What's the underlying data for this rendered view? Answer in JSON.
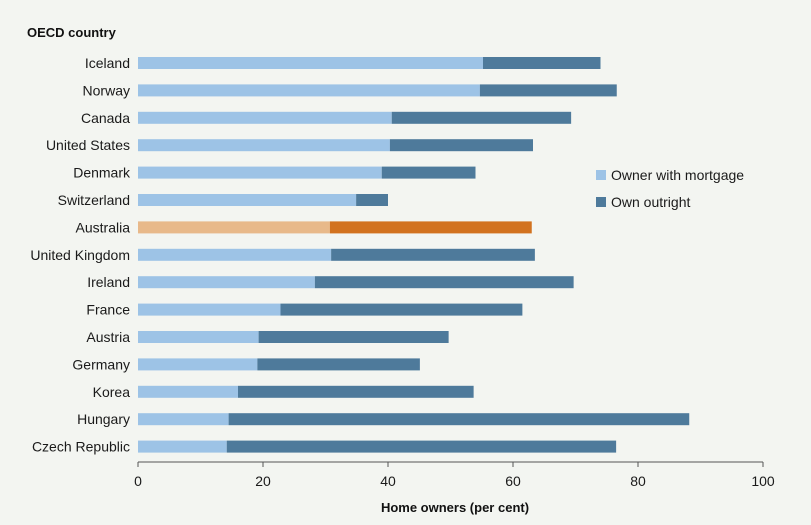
{
  "chart_data": {
    "type": "bar",
    "orientation": "horizontal",
    "stacked": true,
    "y_heading": "OECD country",
    "xlabel": "Home owners (per cent)",
    "xlim": [
      0,
      100
    ],
    "xticks": [
      0,
      20,
      40,
      60,
      80,
      100
    ],
    "grid": false,
    "legend_position": "right",
    "categories": [
      "Iceland",
      "Norway",
      "Canada",
      "United States",
      "Denmark",
      "Switzerland",
      "Australia",
      "United Kingdom",
      "Ireland",
      "France",
      "Austria",
      "Germany",
      "Korea",
      "Hungary",
      "Czech Republic"
    ],
    "highlight_category": "Australia",
    "series": [
      {
        "name": "Owner with mortgage",
        "color": "#9dc3e6",
        "highlight_color": "#e8b98a",
        "values": [
          55.2,
          54.7,
          40.6,
          40.3,
          39.0,
          34.9,
          30.7,
          30.9,
          28.3,
          22.8,
          19.3,
          19.1,
          16.0,
          14.5,
          14.2
        ]
      },
      {
        "name": "Own outright",
        "color": "#4e7a9b",
        "highlight_color": "#d2721f",
        "values": [
          18.8,
          21.9,
          28.7,
          22.9,
          15.0,
          5.1,
          32.3,
          32.6,
          41.4,
          38.7,
          30.4,
          26.0,
          37.7,
          73.7,
          62.3
        ]
      }
    ]
  }
}
